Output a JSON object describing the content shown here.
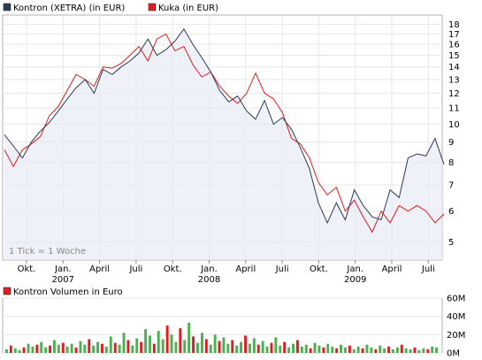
{
  "chart_data": [
    {
      "type": "line",
      "y_scale": "log",
      "ylim": [
        4.5,
        19
      ],
      "grid": true,
      "legend_position": "top-left",
      "series": [
        {
          "name": "Kontron (XETRA) (in EUR)",
          "color": "#2b3a55",
          "values": [
            9.4,
            8.8,
            8.2,
            9.0,
            9.6,
            10.1,
            10.8,
            11.6,
            12.4,
            13.0,
            12.0,
            13.8,
            13.4,
            14.0,
            14.5,
            15.2,
            16.5,
            15.0,
            15.5,
            16.3,
            17.5,
            16.0,
            14.8,
            13.6,
            12.2,
            11.4,
            11.8,
            10.8,
            10.3,
            11.5,
            10.0,
            10.4,
            9.7,
            8.7,
            7.7,
            6.3,
            5.6,
            6.3,
            5.7,
            6.8,
            6.2,
            5.8,
            5.7,
            6.8,
            6.5,
            8.2,
            8.4,
            8.3,
            9.2,
            7.9
          ]
        },
        {
          "name": "Kuka (in EUR)",
          "color": "#e41a1c",
          "values": [
            8.6,
            7.8,
            8.6,
            8.9,
            9.3,
            10.5,
            11.1,
            12.2,
            13.4,
            13.0,
            12.5,
            14.0,
            13.9,
            14.3,
            15.0,
            15.8,
            14.5,
            16.5,
            17.0,
            15.4,
            15.8,
            14.2,
            13.2,
            13.6,
            12.5,
            11.8,
            11.3,
            12.0,
            13.5,
            12.0,
            11.6,
            10.7,
            9.2,
            8.9,
            8.2,
            7.1,
            6.6,
            6.9,
            6.0,
            6.4,
            5.8,
            5.3,
            6.0,
            5.6,
            6.2,
            6.0,
            6.2,
            6.0,
            5.6,
            5.9
          ]
        }
      ],
      "x_tick_labels": [
        {
          "month": "Okt.",
          "year": ""
        },
        {
          "month": "Jan.",
          "year": "2007"
        },
        {
          "month": "April",
          "year": ""
        },
        {
          "month": "Juli",
          "year": ""
        },
        {
          "month": "Okt.",
          "year": ""
        },
        {
          "month": "Jan.",
          "year": "2008"
        },
        {
          "month": "April",
          "year": ""
        },
        {
          "month": "Juli",
          "year": ""
        },
        {
          "month": "Okt.",
          "year": ""
        },
        {
          "month": "Jan.",
          "year": "2009"
        },
        {
          "month": "April",
          "year": ""
        },
        {
          "month": "Juli",
          "year": ""
        }
      ],
      "y_tick_labels": [
        18,
        17,
        16,
        15,
        14,
        13,
        12,
        11,
        10,
        9,
        8,
        7,
        6,
        5
      ],
      "annotation": "1 Tick = 1 Woche"
    },
    {
      "type": "bar",
      "legend_position": "top-left",
      "series": [
        {
          "name": "Kontron Volumen in Euro",
          "color": "#e41a1c",
          "secondary_color": "#4caf50",
          "values": [
            4,
            8,
            5,
            3,
            6,
            10,
            7,
            9,
            12,
            6,
            8,
            14,
            9,
            11,
            7,
            10,
            6,
            13,
            9,
            15,
            8,
            12,
            10,
            7,
            18,
            11,
            9,
            22,
            14,
            8,
            16,
            12,
            26,
            19,
            10,
            24,
            15,
            30,
            20,
            12,
            27,
            14,
            33,
            18,
            11,
            22,
            15,
            9,
            20,
            13,
            17,
            10,
            14,
            8,
            12,
            19,
            10,
            16,
            9,
            13,
            7,
            11,
            17,
            8,
            12,
            6,
            10,
            14,
            7,
            9,
            5,
            11,
            8,
            6,
            10,
            7,
            5,
            9,
            6,
            8,
            4,
            7,
            5,
            9,
            6,
            4,
            8,
            5,
            7,
            4,
            6,
            9,
            5,
            4,
            6,
            3,
            5,
            4,
            7,
            6
          ]
        }
      ],
      "ylim": [
        0,
        60
      ],
      "y_tick_labels": [
        "60M",
        "40M",
        "20M",
        "0M"
      ]
    }
  ]
}
